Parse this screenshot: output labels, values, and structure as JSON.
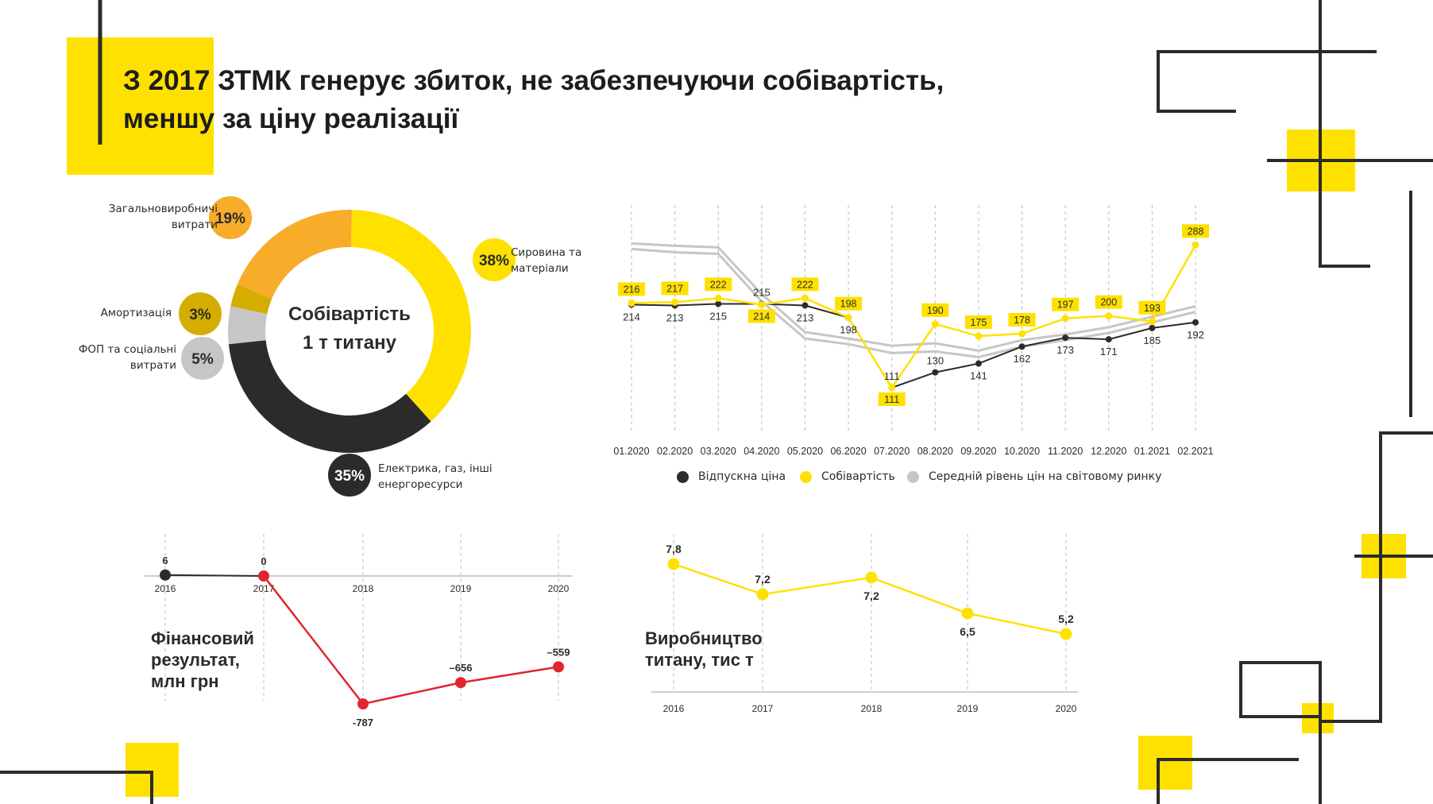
{
  "title": {
    "line1": "З 2017 ЗТМК генерує збиток, не забезпечуючи собівартість,",
    "line2": "меншу за ціну реалізації"
  },
  "colors": {
    "yellow": "#FFE100",
    "orange": "#F7AC2A",
    "dark": "#2B2B2B",
    "ochre": "#D5AD00",
    "gray": "#C6C6C6",
    "red": "#E2242D"
  },
  "chart_data": [
    {
      "type": "pie",
      "title": "Собівартість 1 т титану",
      "title_lines": [
        "Собівартість",
        "1 т титану"
      ],
      "slices": [
        {
          "label": "Сировина та матеріали",
          "value": 38,
          "text": "38%",
          "color": "#FFE100"
        },
        {
          "label": "Електрика, газ, інші енергоресурси",
          "value": 35,
          "text": "35%",
          "color": "#2B2B2B"
        },
        {
          "label": "ФОП та соціальні витрати",
          "value": 5,
          "text": "5%",
          "color": "#C6C6C6"
        },
        {
          "label": "Амортизація",
          "value": 3,
          "text": "3%",
          "color": "#D5AD00"
        },
        {
          "label": "Загальновиробничі витрати",
          "value": 19,
          "text": "19%",
          "color": "#F7AC2A"
        }
      ],
      "label_lines": {
        "materials": [
          "Сировина та",
          "матеріали"
        ],
        "energy": [
          "Електрика, газ, інші",
          "енергоресурси"
        ],
        "payroll": [
          "ФОП та соціальні",
          "витрати"
        ],
        "amort": [
          "Амортизація"
        ],
        "overhead": [
          "Загальновиробничі",
          "витрати"
        ]
      }
    },
    {
      "type": "line",
      "categories": [
        "01.2020",
        "02.2020",
        "03.2020",
        "04.2020",
        "05.2020",
        "06.2020",
        "07.2020",
        "08.2020",
        "09.2020",
        "10.2020",
        "11.2020",
        "12.2020",
        "01.2021",
        "02.2021"
      ],
      "series": [
        {
          "name": "Відпускна ціна",
          "color": "#2B2B2B",
          "values": [
            214,
            213,
            215,
            215,
            213,
            198,
            111,
            130,
            141,
            162,
            173,
            171,
            185,
            192
          ]
        },
        {
          "name": "Собівартість",
          "color": "#FFE100",
          "values": [
            216,
            217,
            222,
            214,
            222,
            198,
            111,
            190,
            175,
            178,
            197,
            200,
            193,
            288
          ]
        },
        {
          "name": "Середній рівень цін на світовому ринку",
          "color": "#C6C6C6",
          "values_upper": [
            290,
            287,
            285,
            227,
            180,
            172,
            163,
            166,
            157,
            170,
            177,
            186,
            199,
            212
          ],
          "values_lower": [
            283,
            279,
            277,
            218,
            172,
            165,
            154,
            156,
            149,
            162,
            170,
            179,
            192,
            205
          ]
        }
      ],
      "price_labels": [
        "214",
        "213",
        "215",
        "215",
        "213",
        "198",
        "111",
        "130",
        "141",
        "162",
        "173",
        "171",
        "185",
        "192"
      ],
      "cost_labels": [
        "216",
        "217",
        "222",
        "214",
        "222",
        "198",
        "111",
        "190",
        "175",
        "178",
        "197",
        "200",
        "193",
        "288"
      ],
      "grid": true,
      "legend": "bottom"
    },
    {
      "type": "line",
      "title": "Фінансовий результат, млн грн",
      "title_lines": [
        "Фінансовий",
        "результат,",
        "млн грн"
      ],
      "categories": [
        "2016",
        "2017",
        "2018",
        "2019",
        "2020"
      ],
      "values": [
        6,
        0,
        -787,
        -656,
        -559
      ],
      "value_labels": [
        "6",
        "0",
        "-787",
        "–656",
        "–559"
      ]
    },
    {
      "type": "line",
      "title": "Виробництво титану, тис т",
      "title_lines": [
        "Виробництво",
        "титану, тис т"
      ],
      "categories": [
        "2016",
        "2017",
        "2018",
        "2019",
        "2020"
      ],
      "values": [
        7.8,
        7.2,
        7.2,
        6.5,
        5.2
      ],
      "value_labels": [
        "7,8",
        "7,2",
        "7,2",
        "6,5",
        "5,2"
      ]
    }
  ]
}
